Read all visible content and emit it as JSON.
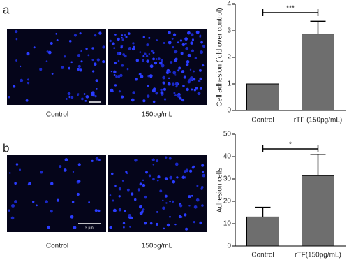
{
  "panels": [
    {
      "label": "a",
      "image_labels": [
        "Control",
        "150pg/mL"
      ]
    },
    {
      "label": "b",
      "image_labels": [
        "Control",
        "150pg/mL"
      ],
      "scale_bar": "5 μm"
    }
  ],
  "chart_data": [
    {
      "type": "bar",
      "y_label": "Cell adhesion (fold over control)",
      "categories": [
        "Control",
        "rTF (150pg/mL)"
      ],
      "values": [
        1,
        2.88
      ],
      "errors": [
        null,
        0.48
      ],
      "color": "#6e6e6e",
      "ylim": [
        0,
        4
      ],
      "yticks": [
        0,
        1,
        2,
        3,
        4
      ],
      "annotation": "***"
    },
    {
      "type": "bar",
      "y_label": "Adhesion cells",
      "categories": [
        "Control",
        "rTF(150pg/mL)"
      ],
      "values": [
        13,
        31.5
      ],
      "errors": [
        4.3,
        9.5
      ],
      "color": "#6e6e6e",
      "ylim": [
        0,
        50
      ],
      "yticks": [
        0,
        10,
        20,
        30,
        40,
        50
      ],
      "annotation": "*"
    }
  ]
}
